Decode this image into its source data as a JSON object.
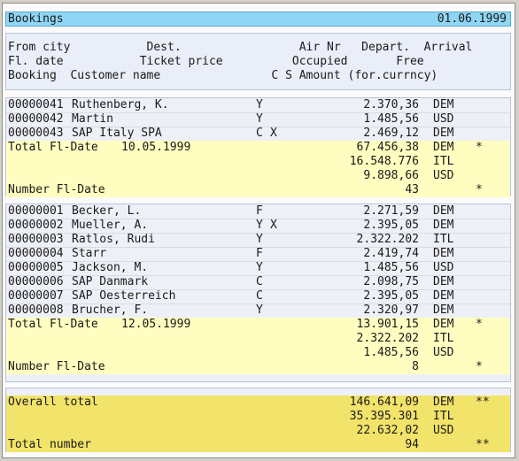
{
  "title": "Bookings",
  "date": "01.06.1999",
  "header": {
    "line1": "From city           Dest.                 Air Nr   Depart.  Arrival",
    "line2": "Fl. date           Ticket price          Occupied       Free",
    "line3": "Booking  Customer name                C S Amount (for.currncy)"
  },
  "groups": [
    {
      "bookings": [
        {
          "id": "00000041",
          "name": "Ruthenberg, K.",
          "c": "Y",
          "s": "",
          "amount": "2.370,36",
          "cur": "DEM"
        },
        {
          "id": "00000042",
          "name": "Martin",
          "c": "Y",
          "s": "",
          "amount": "1.485,56",
          "cur": "USD"
        },
        {
          "id": "00000043",
          "name": "SAP Italy SPA",
          "c": "C",
          "s": "X",
          "amount": "2.469,12",
          "cur": "DEM"
        }
      ],
      "total_label": "Total Fl-Date",
      "total_date": "10.05.1999",
      "totals": [
        {
          "amount": "67.456,38",
          "cur": "DEM",
          "mark": "*"
        },
        {
          "amount": "16.548.776",
          "cur": "ITL",
          "mark": ""
        },
        {
          "amount": "9.898,66",
          "cur": "USD",
          "mark": ""
        }
      ],
      "number_label": "Number Fl-Date",
      "number": "43",
      "number_mark": "*"
    },
    {
      "bookings": [
        {
          "id": "00000001",
          "name": "Becker, L.",
          "c": "F",
          "s": "",
          "amount": "2.271,59",
          "cur": "DEM"
        },
        {
          "id": "00000002",
          "name": "Mueller, A.",
          "c": "Y",
          "s": "X",
          "amount": "2.395,05",
          "cur": "DEM"
        },
        {
          "id": "00000003",
          "name": "Ratlos, Rudi",
          "c": "Y",
          "s": "",
          "amount": "2.322.202",
          "cur": "ITL"
        },
        {
          "id": "00000004",
          "name": "Starr",
          "c": "F",
          "s": "",
          "amount": "2.419,74",
          "cur": "DEM"
        },
        {
          "id": "00000005",
          "name": "Jackson, M.",
          "c": "Y",
          "s": "",
          "amount": "1.485,56",
          "cur": "USD"
        },
        {
          "id": "00000006",
          "name": "SAP Danmark",
          "c": "C",
          "s": "",
          "amount": "2.098,75",
          "cur": "DEM"
        },
        {
          "id": "00000007",
          "name": "SAP Oesterreich",
          "c": "C",
          "s": "",
          "amount": "2.395,05",
          "cur": "DEM"
        },
        {
          "id": "00000008",
          "name": "Brucher, F.",
          "c": "Y",
          "s": "",
          "amount": "2.320,97",
          "cur": "DEM"
        }
      ],
      "total_label": "Total Fl-Date",
      "total_date": "12.05.1999",
      "totals": [
        {
          "amount": "13.901,15",
          "cur": "DEM",
          "mark": "*"
        },
        {
          "amount": "2.322.202",
          "cur": "ITL",
          "mark": ""
        },
        {
          "amount": "1.485,56",
          "cur": "USD",
          "mark": ""
        }
      ],
      "number_label": "Number Fl-Date",
      "number": "8",
      "number_mark": "*"
    }
  ],
  "overall": {
    "label": "Overall total",
    "totals": [
      {
        "amount": "146.641,09",
        "cur": "DEM",
        "mark": "**"
      },
      {
        "amount": "35.395.301",
        "cur": "ITL",
        "mark": ""
      },
      {
        "amount": "22.632,02",
        "cur": "USD",
        "mark": ""
      }
    ],
    "number_label": "Total number",
    "number": "94",
    "number_mark": "**"
  }
}
